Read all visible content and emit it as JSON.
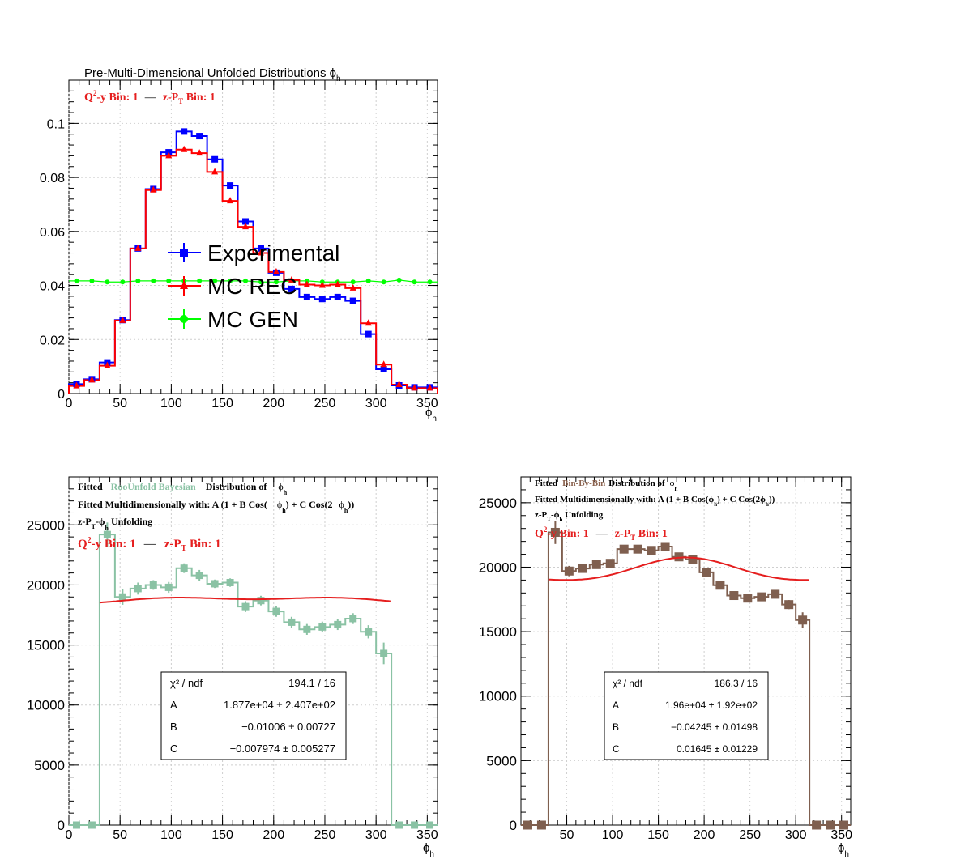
{
  "chart_data": [
    {
      "type": "line",
      "title": "Pre-Multi-Dimensional Unfolded Distributions ϕ",
      "title_sub": "h",
      "bin_label": {
        "q2y": "Q",
        "q2y_sup": "2",
        "q2y_rest": "-y Bin: 1",
        "sep": "—",
        "zpt": "z-P",
        "zpt_sub": "T",
        "zpt_rest": " Bin: 1"
      },
      "xlabel": "ϕ",
      "xlabel_sub": "h",
      "xlim": [
        0,
        360
      ],
      "ylim": [
        0,
        0.116
      ],
      "x_ticks": [
        "0",
        "50",
        "100",
        "150",
        "200",
        "250",
        "300",
        "350"
      ],
      "x_tick_values": [
        0,
        50,
        100,
        150,
        200,
        250,
        300,
        350
      ],
      "y_ticks": [
        "0",
        "0.02",
        "0.04",
        "0.06",
        "0.08",
        "0.1"
      ],
      "y_tick_values": [
        0,
        0.02,
        0.04,
        0.06,
        0.08,
        0.1
      ],
      "grid": true,
      "bin_edges": [
        0,
        15,
        30,
        45,
        60,
        75,
        90,
        105,
        120,
        135,
        150,
        165,
        180,
        195,
        210,
        225,
        240,
        255,
        270,
        285,
        300,
        315,
        330,
        345,
        360
      ],
      "series": [
        {
          "name": "Experimental",
          "color": "#0000ff",
          "marker": "square",
          "values": [
            0.0035,
            0.0053,
            0.0115,
            0.0272,
            0.0537,
            0.0757,
            0.0893,
            0.097,
            0.0953,
            0.0867,
            0.077,
            0.0637,
            0.0537,
            0.0447,
            0.0387,
            0.0357,
            0.035,
            0.0357,
            0.0343,
            0.022,
            0.009,
            0.003,
            0.0023,
            0.0023
          ]
        },
        {
          "name": "MC REC",
          "color": "#ff0000",
          "marker": "triangle",
          "values": [
            0.0028,
            0.005,
            0.0103,
            0.027,
            0.0537,
            0.0753,
            0.088,
            0.0903,
            0.089,
            0.082,
            0.0713,
            0.0617,
            0.052,
            0.045,
            0.042,
            0.0403,
            0.04,
            0.0403,
            0.039,
            0.026,
            0.0107,
            0.0033,
            0.002,
            0.002
          ]
        },
        {
          "name": "MC GEN",
          "color": "#00ff00",
          "marker": "circle",
          "values": [
            0.0417,
            0.0417,
            0.0413,
            0.0413,
            0.0417,
            0.0417,
            0.0417,
            0.0417,
            0.0417,
            0.0417,
            0.0417,
            0.0417,
            0.0413,
            0.0413,
            0.0417,
            0.0417,
            0.0413,
            0.0413,
            0.0413,
            0.0417,
            0.0413,
            0.042,
            0.0413,
            0.0413
          ]
        }
      ]
    },
    {
      "type": "line",
      "title_lines": [
        {
          "a": "Fitted",
          "method": "RooUnfold Bayesian",
          "b": "Distribution of",
          "phi": "ϕ",
          "phi_sub": "h"
        },
        {
          "text": "Fitted Multidimensionally with: A (1 + B Cos(",
          "phi1": "ϕ",
          "phi1_sub": "h",
          "mid": ") + C Cos(2",
          "phi2": "ϕ",
          "phi2_sub": "h",
          "end": "))"
        },
        {
          "text1": "z-P",
          "sub1": "T",
          "text2": "-ϕ",
          "sub2": "h",
          "text3": " Unfolding"
        }
      ],
      "method_color": "#8ac2a4",
      "bin_label": {
        "q2y": "Q",
        "q2y_sup": "2",
        "q2y_rest": "-y Bin: 1",
        "sep": "—",
        "zpt": "z-P",
        "zpt_sub": "T",
        "zpt_rest": " Bin: 1"
      },
      "xlabel": "ϕ",
      "xlabel_sub": "h",
      "xlim": [
        0,
        360
      ],
      "ylim": [
        0,
        29000
      ],
      "x_ticks": [
        "0",
        "50",
        "100",
        "150",
        "200",
        "250",
        "300",
        "350"
      ],
      "x_tick_values": [
        0,
        50,
        100,
        150,
        200,
        250,
        300,
        350
      ],
      "y_ticks": [
        "0",
        "5000",
        "10000",
        "15000",
        "20000",
        "25000"
      ],
      "y_tick_values": [
        0,
        5000,
        10000,
        15000,
        20000,
        25000
      ],
      "grid": true,
      "bin_edges": [
        0,
        15,
        30,
        45,
        60,
        75,
        90,
        105,
        120,
        135,
        150,
        165,
        180,
        195,
        210,
        225,
        240,
        255,
        270,
        285,
        300,
        315,
        330,
        345,
        360
      ],
      "hist_color": "#8ac2a4",
      "values": [
        0,
        0,
        24200,
        19000,
        19700,
        20000,
        19800,
        21400,
        20800,
        20100,
        20200,
        18200,
        18700,
        17800,
        16900,
        16300,
        16500,
        16700,
        17200,
        16100,
        14300,
        0,
        0,
        0
      ],
      "errors": [
        0,
        0,
        1000,
        650,
        500,
        400,
        450,
        400,
        450,
        350,
        350,
        450,
        400,
        450,
        450,
        450,
        450,
        450,
        450,
        550,
        900,
        0,
        0,
        0
      ],
      "fit_color": "#e51e1e",
      "fit": {
        "A": 18770,
        "B": -0.01006,
        "C": -0.007974,
        "x_range": [
          30,
          315
        ]
      },
      "stats": {
        "rows": [
          {
            "label": "χ² / ndf",
            "value": "194.1 / 16"
          },
          {
            "label": "A",
            "value": "1.877e+04 ± 2.407e+02"
          },
          {
            "label": "B",
            "value": "−0.01006 ± 0.00727"
          },
          {
            "label": "C",
            "value": "−0.007974 ± 0.005277"
          }
        ]
      }
    },
    {
      "type": "line",
      "title_lines": [
        {
          "a": "Fitted",
          "method": "Bin-By-Bin",
          "b": "Distribution of",
          "phi": "ϕ",
          "phi_sub": "h"
        },
        {
          "text": "Fitted Multidimensionally with: A (1 + B Cos(ϕ",
          "phi1_sub": "h",
          "mid": ") + C Cos(2ϕ",
          "phi2_sub": "h",
          "end": "))"
        },
        {
          "text1": "z-P",
          "sub1": "T",
          "text2": "-ϕ",
          "sub2": "h",
          "text3": " Unfolding"
        }
      ],
      "method_color": "#8c6450",
      "bin_label": {
        "q2y": "Q",
        "q2y_sup": "2",
        "q2y_rest": "-y Bin: 1",
        "sep": "—",
        "zpt": "z-P",
        "zpt_sub": "T",
        "zpt_rest": " Bin: 1"
      },
      "xlabel": "ϕ",
      "xlabel_sub": "h",
      "xlim": [
        0,
        360
      ],
      "ylim": [
        0,
        27000
      ],
      "x_ticks": [
        "50",
        "100",
        "150",
        "200",
        "250",
        "300",
        "350"
      ],
      "x_tick_values": [
        50,
        100,
        150,
        200,
        250,
        300,
        350
      ],
      "y_ticks": [
        "0",
        "5000",
        "10000",
        "15000",
        "20000",
        "25000"
      ],
      "y_tick_values": [
        0,
        5000,
        10000,
        15000,
        20000,
        25000
      ],
      "grid": true,
      "bin_edges": [
        0,
        15,
        30,
        45,
        60,
        75,
        90,
        105,
        120,
        135,
        150,
        165,
        180,
        195,
        210,
        225,
        240,
        255,
        270,
        285,
        300,
        315,
        330,
        345,
        360
      ],
      "hist_color": "#7f5f4f",
      "values": [
        0,
        0,
        22700,
        19700,
        19900,
        20200,
        20300,
        21400,
        21400,
        21300,
        21600,
        20800,
        20600,
        19600,
        18600,
        17800,
        17600,
        17700,
        17900,
        17100,
        15900,
        0,
        0,
        0
      ],
      "errors": [
        0,
        0,
        900,
        400,
        300,
        300,
        300,
        300,
        300,
        300,
        300,
        300,
        300,
        300,
        300,
        300,
        300,
        300,
        300,
        350,
        600,
        0,
        0,
        0
      ],
      "fit_color": "#e51e1e",
      "fit": {
        "A": 19600,
        "B": -0.04245,
        "C": 0.01645,
        "x_range": [
          30,
          315
        ]
      },
      "stats": {
        "rows": [
          {
            "label": "χ² / ndf",
            "value": "186.3 / 16"
          },
          {
            "label": "A",
            "value": "1.96e+04  ± 1.92e+02"
          },
          {
            "label": "B",
            "value": "−0.04245  ± 0.01498"
          },
          {
            "label": "C",
            "value": "0.01645  ± 0.01229"
          }
        ]
      }
    }
  ]
}
